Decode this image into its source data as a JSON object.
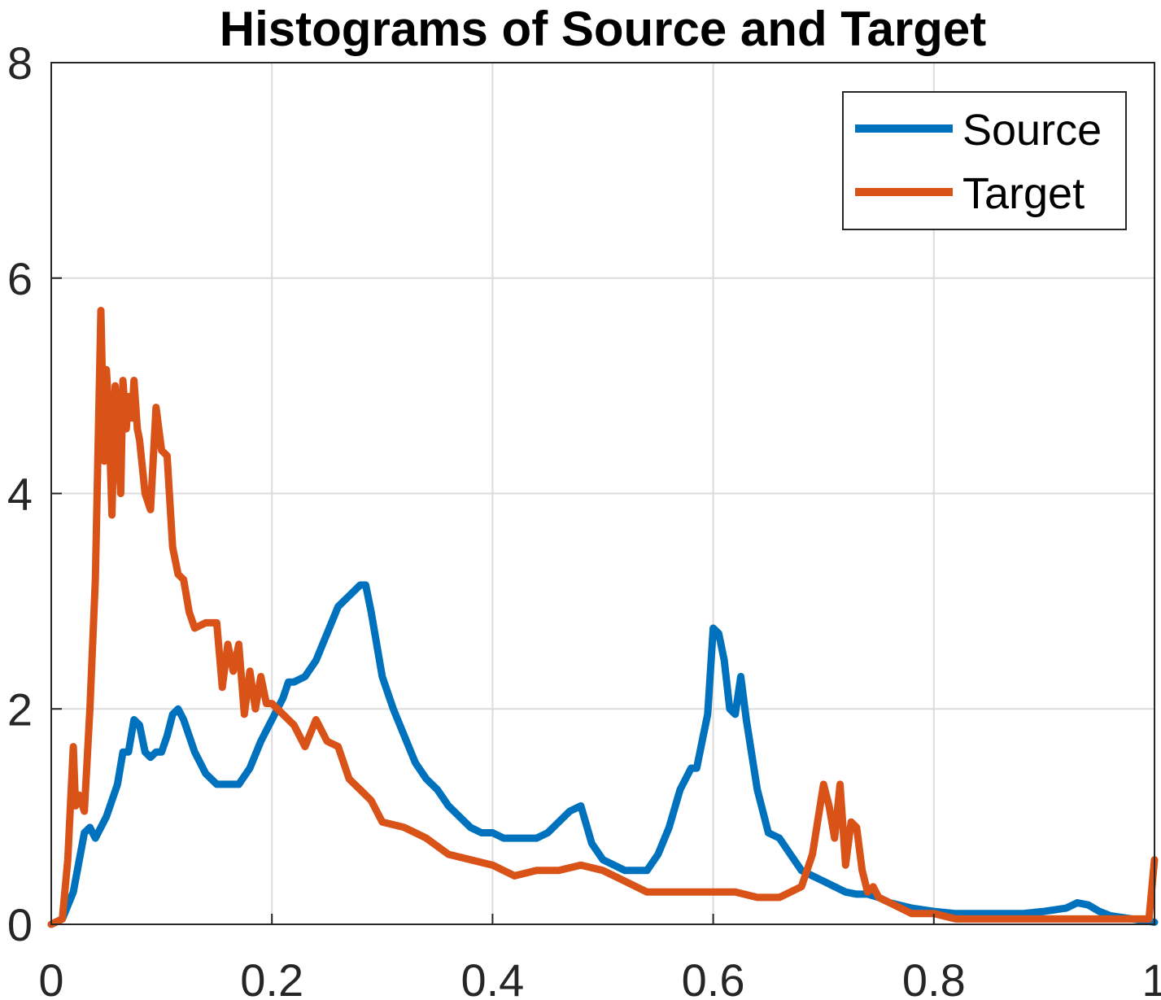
{
  "chart_data": {
    "type": "line",
    "title": "Histograms of Source and Target",
    "xlabel": "",
    "ylabel": "",
    "xlim": [
      0,
      1
    ],
    "ylim": [
      0,
      8
    ],
    "xticks": [
      0,
      0.2,
      0.4,
      0.6,
      0.8,
      1
    ],
    "xtick_labels": [
      "0",
      "0.2",
      "0.4",
      "0.6",
      "0.8",
      "1"
    ],
    "yticks": [
      0,
      2,
      4,
      6,
      8
    ],
    "ytick_labels": [
      "0",
      "2",
      "4",
      "6",
      "8"
    ],
    "grid": true,
    "legend_position": "top-right",
    "series": [
      {
        "name": "Source",
        "color": "#0072BD",
        "x": [
          0,
          0.01,
          0.02,
          0.03,
          0.035,
          0.04,
          0.05,
          0.06,
          0.065,
          0.07,
          0.075,
          0.08,
          0.085,
          0.09,
          0.095,
          0.1,
          0.105,
          0.11,
          0.115,
          0.12,
          0.13,
          0.14,
          0.15,
          0.16,
          0.17,
          0.18,
          0.19,
          0.2,
          0.21,
          0.215,
          0.22,
          0.23,
          0.24,
          0.25,
          0.26,
          0.27,
          0.28,
          0.285,
          0.29,
          0.3,
          0.31,
          0.32,
          0.33,
          0.34,
          0.35,
          0.36,
          0.37,
          0.38,
          0.39,
          0.4,
          0.41,
          0.42,
          0.43,
          0.44,
          0.45,
          0.46,
          0.47,
          0.48,
          0.49,
          0.5,
          0.51,
          0.52,
          0.53,
          0.54,
          0.55,
          0.56,
          0.57,
          0.58,
          0.585,
          0.59,
          0.595,
          0.6,
          0.605,
          0.61,
          0.615,
          0.62,
          0.625,
          0.63,
          0.64,
          0.65,
          0.66,
          0.67,
          0.68,
          0.69,
          0.7,
          0.71,
          0.72,
          0.73,
          0.74,
          0.75,
          0.76,
          0.78,
          0.8,
          0.82,
          0.84,
          0.86,
          0.88,
          0.9,
          0.92,
          0.93,
          0.94,
          0.95,
          0.96,
          0.98,
          1.0
        ],
        "y": [
          0.0,
          0.05,
          0.3,
          0.85,
          0.9,
          0.8,
          1.0,
          1.3,
          1.6,
          1.6,
          1.9,
          1.85,
          1.6,
          1.55,
          1.6,
          1.6,
          1.75,
          1.95,
          2.0,
          1.9,
          1.6,
          1.4,
          1.3,
          1.3,
          1.3,
          1.45,
          1.7,
          1.9,
          2.1,
          2.25,
          2.25,
          2.3,
          2.45,
          2.7,
          2.95,
          3.05,
          3.15,
          3.15,
          2.9,
          2.3,
          2.0,
          1.75,
          1.5,
          1.35,
          1.25,
          1.1,
          1.0,
          0.9,
          0.85,
          0.85,
          0.8,
          0.8,
          0.8,
          0.8,
          0.85,
          0.95,
          1.05,
          1.1,
          0.75,
          0.6,
          0.55,
          0.5,
          0.5,
          0.5,
          0.65,
          0.9,
          1.25,
          1.45,
          1.45,
          1.7,
          1.95,
          2.75,
          2.7,
          2.45,
          2.0,
          1.95,
          2.3,
          1.9,
          1.25,
          0.85,
          0.8,
          0.65,
          0.5,
          0.45,
          0.4,
          0.35,
          0.3,
          0.28,
          0.28,
          0.25,
          0.2,
          0.15,
          0.12,
          0.1,
          0.1,
          0.1,
          0.1,
          0.12,
          0.15,
          0.2,
          0.18,
          0.12,
          0.08,
          0.05,
          0.02
        ]
      },
      {
        "name": "Target",
        "color": "#D95319",
        "x": [
          0,
          0.01,
          0.015,
          0.02,
          0.022,
          0.025,
          0.03,
          0.035,
          0.04,
          0.045,
          0.048,
          0.05,
          0.052,
          0.055,
          0.058,
          0.06,
          0.063,
          0.065,
          0.068,
          0.07,
          0.073,
          0.075,
          0.078,
          0.08,
          0.085,
          0.09,
          0.095,
          0.1,
          0.105,
          0.11,
          0.115,
          0.12,
          0.125,
          0.13,
          0.14,
          0.15,
          0.155,
          0.16,
          0.165,
          0.17,
          0.175,
          0.18,
          0.185,
          0.19,
          0.195,
          0.2,
          0.21,
          0.22,
          0.23,
          0.24,
          0.25,
          0.26,
          0.27,
          0.28,
          0.29,
          0.3,
          0.32,
          0.34,
          0.36,
          0.38,
          0.4,
          0.42,
          0.44,
          0.46,
          0.48,
          0.5,
          0.52,
          0.54,
          0.56,
          0.58,
          0.6,
          0.62,
          0.64,
          0.66,
          0.68,
          0.69,
          0.7,
          0.705,
          0.71,
          0.715,
          0.72,
          0.725,
          0.73,
          0.735,
          0.74,
          0.745,
          0.75,
          0.76,
          0.78,
          0.8,
          0.82,
          0.85,
          0.88,
          0.9,
          0.92,
          0.95,
          0.98,
          0.995,
          1.0
        ],
        "y": [
          0.0,
          0.05,
          0.6,
          1.65,
          1.1,
          1.2,
          1.05,
          2.0,
          3.2,
          5.7,
          4.3,
          5.15,
          4.8,
          3.8,
          5.0,
          4.6,
          4.0,
          5.05,
          4.6,
          4.9,
          4.7,
          5.05,
          4.6,
          4.5,
          4.0,
          3.85,
          4.8,
          4.4,
          4.35,
          3.5,
          3.25,
          3.2,
          2.9,
          2.75,
          2.8,
          2.8,
          2.2,
          2.6,
          2.35,
          2.6,
          1.95,
          2.35,
          2.0,
          2.3,
          2.05,
          2.05,
          1.95,
          1.85,
          1.65,
          1.9,
          1.7,
          1.65,
          1.35,
          1.25,
          1.15,
          0.95,
          0.9,
          0.8,
          0.65,
          0.6,
          0.55,
          0.45,
          0.5,
          0.5,
          0.55,
          0.5,
          0.4,
          0.3,
          0.3,
          0.3,
          0.3,
          0.3,
          0.25,
          0.25,
          0.35,
          0.65,
          1.3,
          1.1,
          0.8,
          1.3,
          0.55,
          0.95,
          0.9,
          0.5,
          0.3,
          0.35,
          0.25,
          0.2,
          0.1,
          0.1,
          0.05,
          0.05,
          0.05,
          0.05,
          0.05,
          0.05,
          0.05,
          0.05,
          0.6
        ]
      }
    ]
  }
}
